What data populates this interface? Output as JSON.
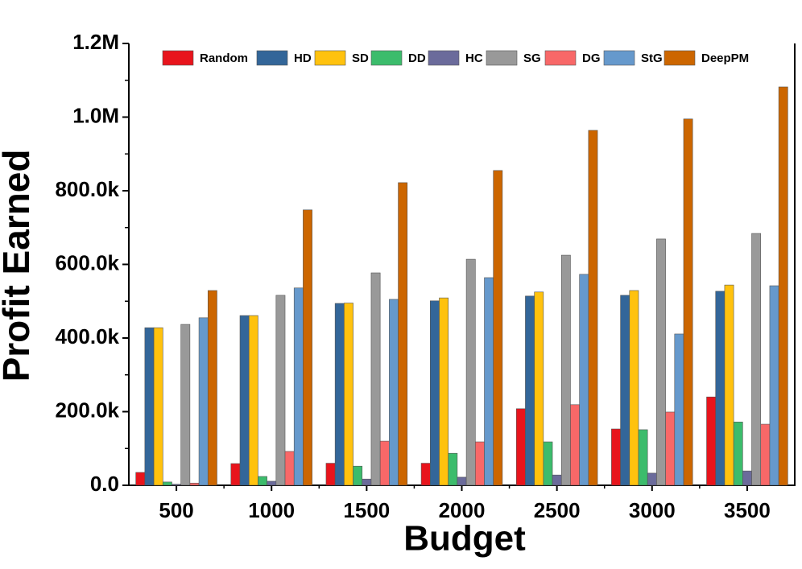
{
  "chart_data": {
    "type": "bar",
    "x_label": "Budget",
    "y_label": "Profit Earned",
    "categories": [
      "500",
      "1000",
      "1500",
      "2000",
      "2500",
      "3000",
      "3500"
    ],
    "series": [
      {
        "name": "Random",
        "color": "#e8141c",
        "values": [
          35000,
          59000,
          60000,
          60000,
          208000,
          153000,
          240000
        ]
      },
      {
        "name": "HD",
        "color": "#336699",
        "values": [
          428000,
          461000,
          494000,
          501000,
          514000,
          516000,
          527000
        ]
      },
      {
        "name": "SD",
        "color": "#ffc20e",
        "values": [
          428000,
          461000,
          495000,
          509000,
          525000,
          529000,
          544000
        ]
      },
      {
        "name": "DD",
        "color": "#3cbc6c",
        "values": [
          9000,
          24000,
          52000,
          87000,
          118000,
          151000,
          172000
        ]
      },
      {
        "name": "HC",
        "color": "#6b6b9b",
        "values": [
          3000,
          11000,
          17000,
          22000,
          28000,
          33000,
          39000
        ]
      },
      {
        "name": "SG",
        "color": "#999999",
        "values": [
          437000,
          516000,
          577000,
          614000,
          625000,
          669000,
          684000
        ]
      },
      {
        "name": "DG",
        "color": "#f86868",
        "values": [
          6000,
          92000,
          120000,
          118000,
          219000,
          199000,
          166000
        ]
      },
      {
        "name": "StG",
        "color": "#6699cc",
        "values": [
          455000,
          536000,
          505000,
          564000,
          573000,
          411000,
          542000
        ]
      },
      {
        "name": "DeepPM",
        "color": "#cc6600",
        "values": [
          529000,
          748000,
          822000,
          855000,
          964000,
          995000,
          1082000
        ]
      }
    ],
    "ylim": [
      0,
      1200000
    ],
    "yticks": [
      {
        "value": 0,
        "label": "0.0"
      },
      {
        "value": 200000,
        "label": "200.0k"
      },
      {
        "value": 400000,
        "label": "400.0k"
      },
      {
        "value": 600000,
        "label": "600.0k"
      },
      {
        "value": 800000,
        "label": "800.0k"
      },
      {
        "value": 1000000,
        "label": "1.0M"
      },
      {
        "value": 1200000,
        "label": "1.2M"
      }
    ],
    "legend": "top"
  }
}
